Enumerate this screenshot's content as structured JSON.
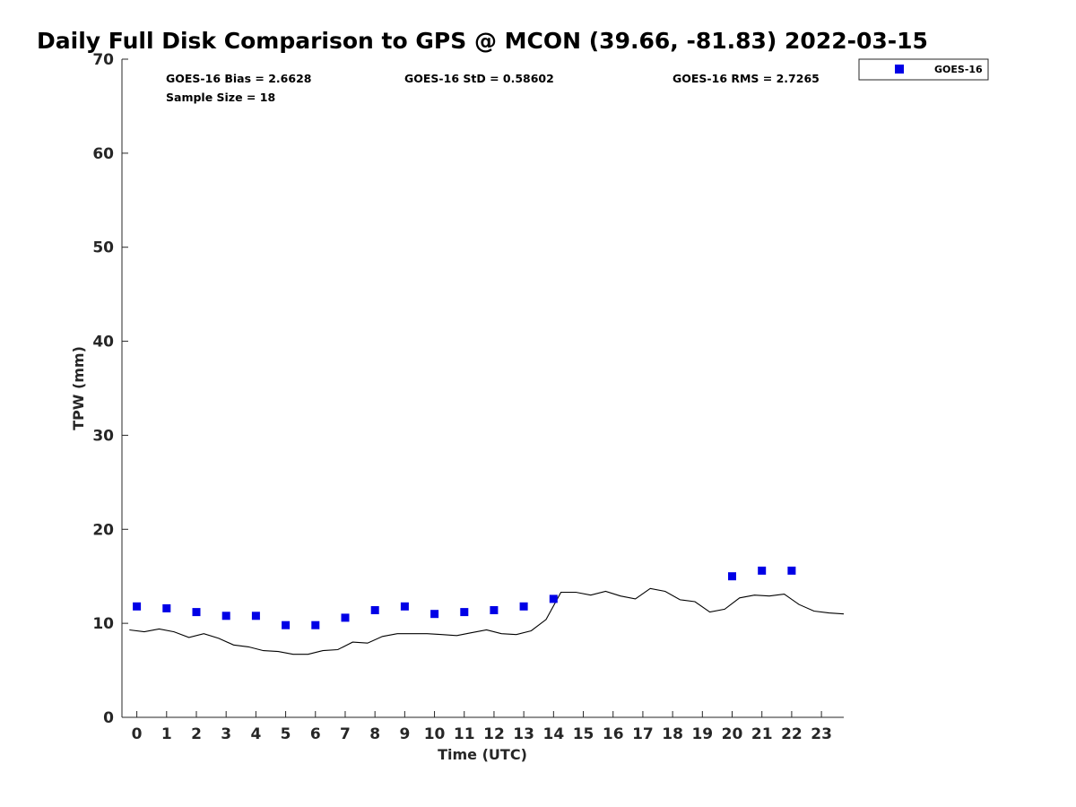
{
  "chart_data": {
    "type": "scatter",
    "title": "Daily Full Disk Comparison to GPS @ MCON (39.66, -81.83) 2022-03-15",
    "xlabel": "Time (UTC)",
    "ylabel": "TPW (mm)",
    "xlim": [
      -0.5,
      23.75
    ],
    "ylim": [
      0,
      70
    ],
    "x_ticks": [
      0,
      1,
      2,
      3,
      4,
      5,
      6,
      7,
      8,
      9,
      10,
      11,
      12,
      13,
      14,
      15,
      16,
      17,
      18,
      19,
      20,
      21,
      22,
      23
    ],
    "y_ticks": [
      0,
      10,
      20,
      30,
      40,
      50,
      60,
      70
    ],
    "grid": false,
    "legend_position": "top-right",
    "colors": {
      "goes16": "#0000e6",
      "gps": "#000000"
    },
    "stats": {
      "bias": "GOES-16 Bias = 2.6628",
      "std": "GOES-16 StD = 0.58602",
      "rms": "GOES-16 RMS = 2.7265",
      "sample_size": "Sample Size = 18"
    },
    "series": [
      {
        "name": "GOES-16",
        "mark": "square",
        "x": [
          0,
          1,
          2,
          3,
          4,
          5,
          6,
          7,
          8,
          9,
          10,
          11,
          12,
          13,
          14,
          20,
          21,
          22
        ],
        "y": [
          11.8,
          11.6,
          11.2,
          10.8,
          10.8,
          9.8,
          9.8,
          10.6,
          11.4,
          11.8,
          11.0,
          11.2,
          11.4,
          11.8,
          12.6,
          15.0,
          15.6,
          15.6
        ]
      },
      {
        "mark": "line",
        "x": [
          -0.25,
          0.25,
          0.75,
          1.25,
          1.75,
          2.25,
          2.75,
          3.25,
          3.75,
          4.25,
          4.75,
          5.25,
          5.75,
          6.25,
          6.75,
          7.25,
          7.75,
          8.25,
          8.75,
          9.25,
          9.75,
          10.25,
          10.75,
          11.25,
          11.75,
          12.25,
          12.75,
          13.25,
          13.75,
          14.25,
          14.75,
          15.25,
          15.75,
          16.25,
          16.75,
          17.25,
          17.75,
          18.25,
          18.75,
          19.25,
          19.75,
          20.25,
          20.75,
          21.25,
          21.75,
          22.25,
          22.75,
          23.25,
          23.75
        ],
        "y": [
          9.3,
          9.1,
          9.4,
          9.1,
          8.5,
          8.9,
          8.4,
          7.7,
          7.5,
          7.1,
          7.0,
          6.7,
          6.7,
          7.1,
          7.2,
          8.0,
          7.9,
          8.6,
          8.9,
          8.9,
          8.9,
          8.8,
          8.7,
          9.0,
          9.3,
          8.9,
          8.8,
          9.2,
          10.4,
          13.3,
          13.3,
          13.0,
          13.4,
          12.9,
          12.6,
          13.7,
          13.4,
          12.5,
          12.3,
          11.2,
          11.5,
          12.7,
          13.0,
          12.9,
          13.1,
          12.0,
          11.3,
          11.1,
          11.0
        ]
      }
    ]
  }
}
